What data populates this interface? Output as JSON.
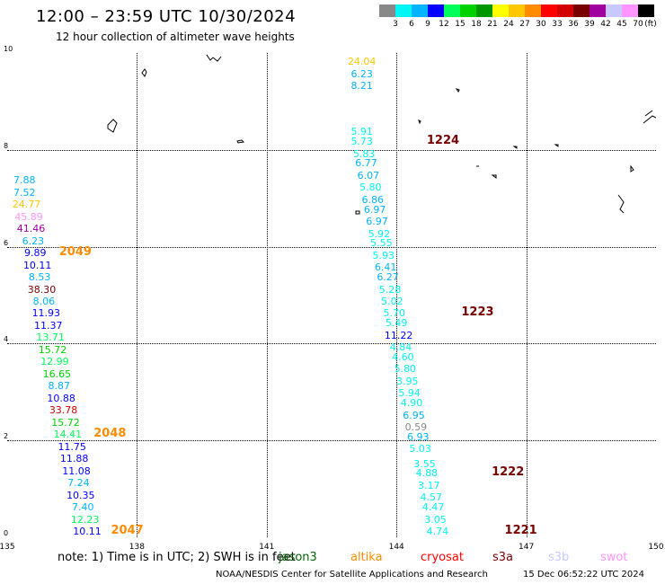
{
  "title": "12:00 – 23:59 UTC 10/30/2024",
  "subtitle": "12 hour collection of altimeter wave heights",
  "colorbar": {
    "unit": "(ft)",
    "colors": [
      "#888888",
      "#00f5f5",
      "#00b4ff",
      "#0000ff",
      "#00ff5a",
      "#00d200",
      "#009600",
      "#ffff00",
      "#ffc800",
      "#ff8c00",
      "#ff0000",
      "#d20000",
      "#780000",
      "#a000a0",
      "#c8c8ff",
      "#ff96ff",
      "#000000"
    ],
    "labels": [
      "3",
      "6",
      "9",
      "12",
      "15",
      "18",
      "21",
      "24",
      "27",
      "30",
      "33",
      "36",
      "39",
      "42",
      "45",
      "70"
    ]
  },
  "map": {
    "xlim": [
      135,
      150
    ],
    "ylim": [
      0,
      10
    ],
    "x_ticks": [
      "135",
      "138",
      "141",
      "144",
      "147",
      "150"
    ],
    "y_ticks": [
      "0",
      "2",
      "4",
      "6",
      "8",
      "10"
    ],
    "grid": true
  },
  "observations": [
    {
      "lon": 143.2,
      "lat": 9.7,
      "label": "24.04",
      "color": "#ffc800"
    },
    {
      "lon": 143.2,
      "lat": 9.45,
      "label": "6.23",
      "color": "#00b4ff"
    },
    {
      "lon": 143.2,
      "lat": 9.2,
      "label": "8.21",
      "color": "#00b4ff"
    },
    {
      "lon": 143.2,
      "lat": 8.25,
      "label": "5.91",
      "color": "#00f5f5"
    },
    {
      "lon": 143.2,
      "lat": 8.05,
      "label": "5.73",
      "color": "#00f5f5"
    },
    {
      "lon": 143.25,
      "lat": 7.8,
      "label": "5.83",
      "color": "#00f5f5"
    },
    {
      "lon": 143.3,
      "lat": 7.6,
      "label": "6.77",
      "color": "#00b4ff"
    },
    {
      "lon": 143.35,
      "lat": 7.35,
      "label": "6.07",
      "color": "#00b4ff"
    },
    {
      "lon": 143.4,
      "lat": 7.1,
      "label": "5.80",
      "color": "#00f5f5"
    },
    {
      "lon": 143.45,
      "lat": 6.85,
      "label": "6.86",
      "color": "#00b4ff"
    },
    {
      "lon": 143.5,
      "lat": 6.65,
      "label": "6.97",
      "color": "#00b4ff"
    },
    {
      "lon": 143.55,
      "lat": 6.4,
      "label": "6.97",
      "color": "#00b4ff"
    },
    {
      "lon": 143.6,
      "lat": 6.15,
      "label": "5.92",
      "color": "#00f5f5"
    },
    {
      "lon": 143.65,
      "lat": 5.95,
      "label": "5.55",
      "color": "#00f5f5"
    },
    {
      "lon": 143.7,
      "lat": 5.7,
      "label": "5.93",
      "color": "#00f5f5"
    },
    {
      "lon": 143.75,
      "lat": 5.45,
      "label": "6.41",
      "color": "#00b4ff"
    },
    {
      "lon": 143.8,
      "lat": 5.25,
      "label": "6.27",
      "color": "#00b4ff"
    },
    {
      "lon": 143.85,
      "lat": 5.0,
      "label": "5.28",
      "color": "#00f5f5"
    },
    {
      "lon": 143.9,
      "lat": 4.75,
      "label": "5.02",
      "color": "#00f5f5"
    },
    {
      "lon": 143.95,
      "lat": 4.5,
      "label": "5.70",
      "color": "#00f5f5"
    },
    {
      "lon": 144.0,
      "lat": 4.3,
      "label": "5.49",
      "color": "#00f5f5"
    },
    {
      "lon": 144.05,
      "lat": 4.05,
      "label": "11.22",
      "color": "#0000ff"
    },
    {
      "lon": 144.1,
      "lat": 3.8,
      "label": "4.84",
      "color": "#00f5f5"
    },
    {
      "lon": 144.15,
      "lat": 3.6,
      "label": "4.60",
      "color": "#00f5f5"
    },
    {
      "lon": 144.2,
      "lat": 3.35,
      "label": "5.80",
      "color": "#00f5f5"
    },
    {
      "lon": 144.25,
      "lat": 3.1,
      "label": "3.95",
      "color": "#00f5f5"
    },
    {
      "lon": 144.3,
      "lat": 2.85,
      "label": "5.94",
      "color": "#00f5f5"
    },
    {
      "lon": 144.35,
      "lat": 2.65,
      "label": "4.90",
      "color": "#00f5f5"
    },
    {
      "lon": 144.4,
      "lat": 2.4,
      "label": "6.95",
      "color": "#00b4ff"
    },
    {
      "lon": 144.45,
      "lat": 2.15,
      "label": "0.59",
      "color": "#888888"
    },
    {
      "lon": 144.5,
      "lat": 1.95,
      "label": "6.93",
      "color": "#00b4ff"
    },
    {
      "lon": 144.55,
      "lat": 1.7,
      "label": "5.03",
      "color": "#00f5f5"
    },
    {
      "lon": 144.65,
      "lat": 1.4,
      "label": "3.55",
      "color": "#00f5f5"
    },
    {
      "lon": 144.7,
      "lat": 1.2,
      "label": "4.88",
      "color": "#00f5f5"
    },
    {
      "lon": 144.75,
      "lat": 0.95,
      "label": "3.17",
      "color": "#00f5f5"
    },
    {
      "lon": 144.8,
      "lat": 0.7,
      "label": "4.57",
      "color": "#00f5f5"
    },
    {
      "lon": 144.85,
      "lat": 0.5,
      "label": "4.47",
      "color": "#00f5f5"
    },
    {
      "lon": 144.9,
      "lat": 0.25,
      "label": "3.05",
      "color": "#00f5f5"
    },
    {
      "lon": 144.95,
      "lat": 0.0,
      "label": "4.74",
      "color": "#00f5f5"
    },
    {
      "lon": 135.4,
      "lat": 7.25,
      "label": "7.88",
      "color": "#00b4ff"
    },
    {
      "lon": 135.4,
      "lat": 7.0,
      "label": "7.52",
      "color": "#00b4ff"
    },
    {
      "lon": 135.45,
      "lat": 6.75,
      "label": "24.77",
      "color": "#ffc800"
    },
    {
      "lon": 135.5,
      "lat": 6.5,
      "label": "45.89",
      "color": "#ff96ff"
    },
    {
      "lon": 135.55,
      "lat": 6.25,
      "label": "41.46",
      "color": "#a000a0"
    },
    {
      "lon": 135.6,
      "lat": 6.0,
      "label": "6.23",
      "color": "#00b4ff"
    },
    {
      "lon": 135.65,
      "lat": 5.75,
      "label": "9.89",
      "color": "#0000ff"
    },
    {
      "lon": 135.7,
      "lat": 5.5,
      "label": "10.11",
      "color": "#0000ff"
    },
    {
      "lon": 135.75,
      "lat": 5.25,
      "label": "8.53",
      "color": "#00b4ff"
    },
    {
      "lon": 135.8,
      "lat": 5.0,
      "label": "38.30",
      "color": "#780000"
    },
    {
      "lon": 135.85,
      "lat": 4.75,
      "label": "8.06",
      "color": "#00b4ff"
    },
    {
      "lon": 135.9,
      "lat": 4.5,
      "label": "11.93",
      "color": "#0000ff"
    },
    {
      "lon": 135.95,
      "lat": 4.25,
      "label": "11.37",
      "color": "#0000ff"
    },
    {
      "lon": 136.0,
      "lat": 4.0,
      "label": "13.71",
      "color": "#00ff5a"
    },
    {
      "lon": 136.05,
      "lat": 3.75,
      "label": "15.72",
      "color": "#00d200"
    },
    {
      "lon": 136.1,
      "lat": 3.5,
      "label": "12.99",
      "color": "#00ff5a"
    },
    {
      "lon": 136.15,
      "lat": 3.25,
      "label": "16.65",
      "color": "#00d200"
    },
    {
      "lon": 136.2,
      "lat": 3.0,
      "label": "8.87",
      "color": "#00b4ff"
    },
    {
      "lon": 136.25,
      "lat": 2.75,
      "label": "10.88",
      "color": "#0000ff"
    },
    {
      "lon": 136.3,
      "lat": 2.5,
      "label": "33.78",
      "color": "#d20000"
    },
    {
      "lon": 136.35,
      "lat": 2.25,
      "label": "15.72",
      "color": "#00d200"
    },
    {
      "lon": 136.4,
      "lat": 2.0,
      "label": "14.41",
      "color": "#00ff5a"
    },
    {
      "lon": 136.5,
      "lat": 1.75,
      "label": "11.75",
      "color": "#0000ff"
    },
    {
      "lon": 136.55,
      "lat": 1.5,
      "label": "11.88",
      "color": "#0000ff"
    },
    {
      "lon": 136.6,
      "lat": 1.25,
      "label": "11.08",
      "color": "#0000ff"
    },
    {
      "lon": 136.65,
      "lat": 1.0,
      "label": "7.24",
      "color": "#00b4ff"
    },
    {
      "lon": 136.7,
      "lat": 0.75,
      "label": "10.35",
      "color": "#0000ff"
    },
    {
      "lon": 136.75,
      "lat": 0.5,
      "label": "7.40",
      "color": "#00b4ff"
    },
    {
      "lon": 136.8,
      "lat": 0.25,
      "label": "12.23",
      "color": "#00ff5a"
    },
    {
      "lon": 136.85,
      "lat": 0.0,
      "label": "10.11",
      "color": "#0000ff"
    }
  ],
  "orbit_labels": [
    {
      "lon": 144.7,
      "lat": 8.05,
      "label": "1224",
      "color": "#780000"
    },
    {
      "lon": 145.5,
      "lat": 4.5,
      "label": "1223",
      "color": "#780000"
    },
    {
      "lon": 146.2,
      "lat": 1.2,
      "label": "1222",
      "color": "#780000"
    },
    {
      "lon": 146.5,
      "lat": 0.0,
      "label": "1221",
      "color": "#780000"
    },
    {
      "lon": 136.2,
      "lat": 5.75,
      "label": "2049",
      "color": "#ff8c00"
    },
    {
      "lon": 137.0,
      "lat": 2.0,
      "label": "2048",
      "color": "#ff8c00"
    },
    {
      "lon": 137.4,
      "lat": 0.0,
      "label": "2047",
      "color": "#ff8c00"
    }
  ],
  "note": {
    "text": "note:  1) Time is in UTC; 2) SWH is in feet",
    "satellites": [
      {
        "name": "jason3",
        "color": "#006400"
      },
      {
        "name": "altika",
        "color": "#ff8c00"
      },
      {
        "name": "cryosat",
        "color": "#ff0000"
      },
      {
        "name": "s3a",
        "color": "#780000"
      },
      {
        "name": "s3b",
        "color": "#c8c8ff"
      },
      {
        "name": "swot",
        "color": "#ff96ff"
      }
    ]
  },
  "footer": {
    "credit": "NOAA/NESDIS Center for Satellite Applications and Research",
    "generated": "15 Dec 06:52:22 UTC 2024"
  }
}
